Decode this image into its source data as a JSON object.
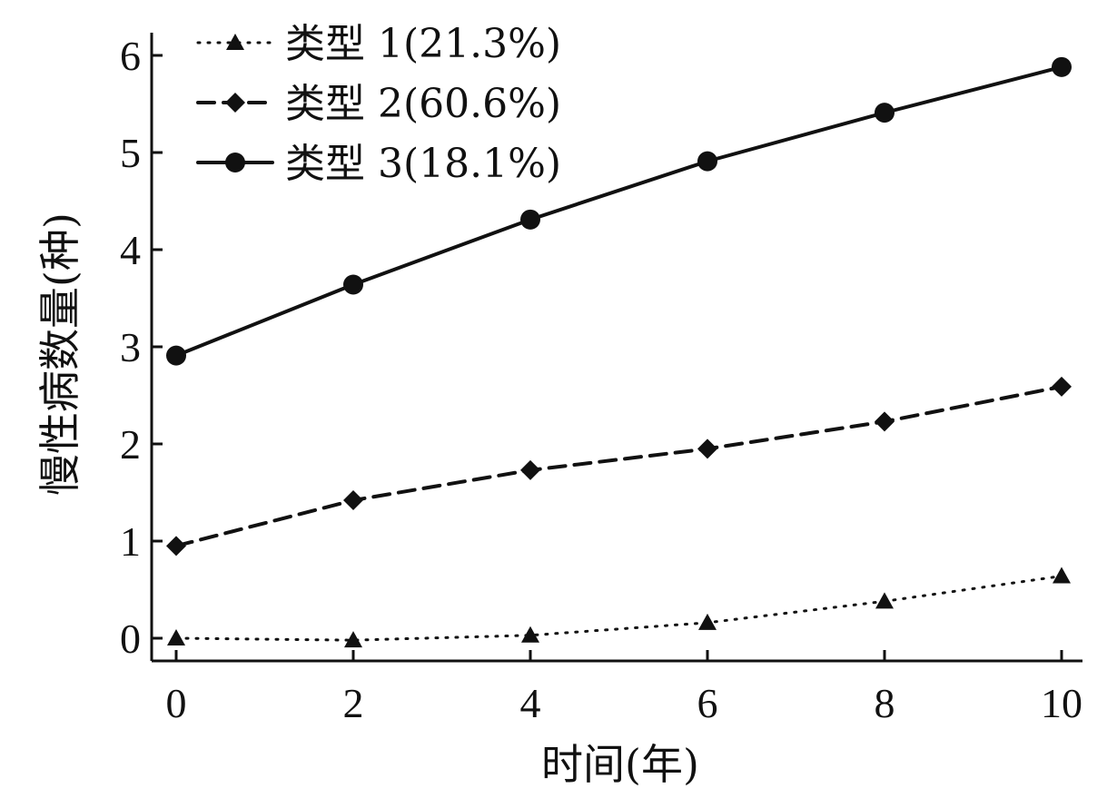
{
  "chart_data": {
    "type": "line",
    "x": [
      0,
      2,
      4,
      6,
      8,
      10
    ],
    "xticks": [
      "0",
      "2",
      "4",
      "6",
      "8",
      "10"
    ],
    "yticks": [
      "0",
      "1",
      "2",
      "3",
      "4",
      "5",
      "6"
    ],
    "xlim": [
      0,
      10
    ],
    "ylim": [
      0,
      6
    ],
    "xlabel": "时间(年)",
    "ylabel": "慢性病数量(种)",
    "grid": false,
    "legend_position": "top-left",
    "series": [
      {
        "name": "类型 1(21.3%)",
        "values": [
          0.0,
          -0.02,
          0.03,
          0.16,
          0.38,
          0.64
        ],
        "style": "dotted",
        "marker": "triangle",
        "color": "#111111"
      },
      {
        "name": "类型 2(60.6%)",
        "values": [
          0.95,
          1.42,
          1.73,
          1.95,
          2.23,
          2.59
        ],
        "style": "dashed",
        "marker": "diamond",
        "color": "#111111"
      },
      {
        "name": "类型 3(18.1%)",
        "values": [
          2.91,
          3.64,
          4.31,
          4.91,
          5.41,
          5.88
        ],
        "style": "solid",
        "marker": "circle",
        "color": "#111111"
      }
    ]
  }
}
